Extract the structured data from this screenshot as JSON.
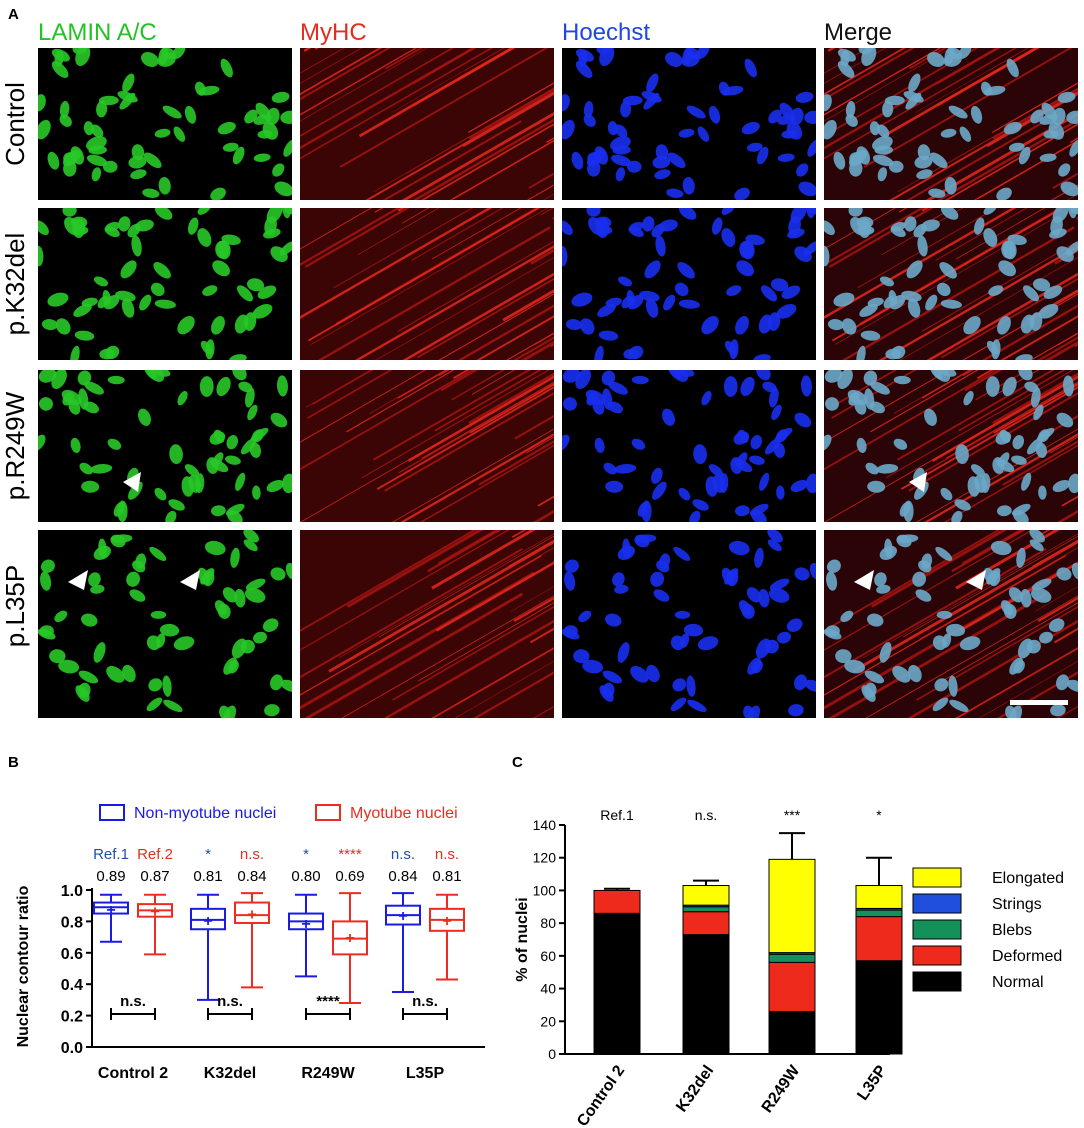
{
  "panel_a": {
    "letter": "A",
    "channels": [
      {
        "label": "LAMIN A/C",
        "color": "#22c322"
      },
      {
        "label": "MyHC",
        "color": "#e42d1f"
      },
      {
        "label": "Hoechst",
        "color": "#1f47e6"
      },
      {
        "label": "Merge",
        "color": "#111111"
      }
    ],
    "rows": [
      "Control",
      "p.K32del",
      "p.R249W",
      "p.L35P"
    ]
  },
  "panel_b": {
    "letter": "B",
    "legend": {
      "non_myotube": "Non-myotube nuclei",
      "myotube": "Myotube nuclei"
    },
    "colors": {
      "non_myotube": "#1a1ae6",
      "myotube": "#ee2b20",
      "sig_blue": "#1f4fa8",
      "sig_red": "#e03020"
    },
    "sig_labels": [
      "Ref.1",
      "Ref.2",
      "*",
      "n.s.",
      "*",
      "****",
      "n.s.",
      "n.s."
    ],
    "medians_text": [
      "0.89",
      "0.87",
      "0.81",
      "0.84",
      "0.80",
      "0.69",
      "0.84",
      "0.81"
    ],
    "bracket_labels": [
      "n.s.",
      "n.s.",
      "****",
      "n.s."
    ]
  },
  "panel_c": {
    "letter": "C",
    "header_labels": [
      "Ref.1",
      "n.s.",
      "***",
      "*"
    ],
    "legend": [
      "Elongated",
      "Strings",
      "Blebs",
      "Deformed",
      "Normal"
    ]
  },
  "chart_data": [
    {
      "type": "box",
      "title": "",
      "xlabel": "",
      "ylabel": "Nuclear contour ratio",
      "categories": [
        "Control 2",
        "K32del",
        "R249W",
        "L35P"
      ],
      "ylim": [
        0.0,
        1.0
      ],
      "yticks": [
        0.0,
        0.2,
        0.4,
        0.6,
        0.8,
        1.0
      ],
      "series": [
        {
          "name": "Non-myotube nuclei",
          "boxes": [
            {
              "min": 0.67,
              "q1": 0.85,
              "median": 0.89,
              "q3": 0.92,
              "max": 0.97,
              "mean": 0.88
            },
            {
              "min": 0.3,
              "q1": 0.75,
              "median": 0.81,
              "q3": 0.88,
              "max": 0.97,
              "mean": 0.81
            },
            {
              "min": 0.45,
              "q1": 0.75,
              "median": 0.8,
              "q3": 0.85,
              "max": 0.97,
              "mean": 0.79
            },
            {
              "min": 0.35,
              "q1": 0.78,
              "median": 0.84,
              "q3": 0.9,
              "max": 0.98,
              "mean": 0.84
            }
          ]
        },
        {
          "name": "Myotube nuclei",
          "boxes": [
            {
              "min": 0.59,
              "q1": 0.83,
              "median": 0.87,
              "q3": 0.91,
              "max": 0.97,
              "mean": 0.87
            },
            {
              "min": 0.38,
              "q1": 0.79,
              "median": 0.84,
              "q3": 0.92,
              "max": 0.98,
              "mean": 0.85
            },
            {
              "min": 0.28,
              "q1": 0.59,
              "median": 0.69,
              "q3": 0.8,
              "max": 0.98,
              "mean": 0.7
            },
            {
              "min": 0.43,
              "q1": 0.74,
              "median": 0.81,
              "q3": 0.88,
              "max": 0.97,
              "mean": 0.81
            }
          ]
        }
      ]
    },
    {
      "type": "bar",
      "stacked": true,
      "title": "",
      "xlabel": "",
      "ylabel": "% of nuclei",
      "categories": [
        "Control 2",
        "K32del",
        "R249W",
        "L35P"
      ],
      "ylim": [
        0,
        140
      ],
      "yticks": [
        0,
        20,
        40,
        60,
        80,
        100,
        120,
        140
      ],
      "series": [
        {
          "name": "Normal",
          "color": "#000000",
          "values": [
            86,
            73,
            26,
            57
          ],
          "errors": [
            0,
            7,
            12,
            13
          ]
        },
        {
          "name": "Deformed",
          "color": "#ee2a1c",
          "values": [
            14,
            14,
            30,
            27
          ],
          "errors": [
            0,
            0,
            0,
            0
          ]
        },
        {
          "name": "Blebs",
          "color": "#14905a",
          "values": [
            0,
            3,
            5,
            4
          ],
          "errors": [
            0,
            0,
            0,
            0
          ]
        },
        {
          "name": "Strings",
          "color": "#1f4fdc",
          "values": [
            0,
            1,
            1,
            1
          ],
          "errors": [
            1,
            2,
            9,
            1
          ]
        },
        {
          "name": "Elongated",
          "color": "#ffff00",
          "values": [
            0,
            12,
            57,
            14
          ],
          "errors": [
            0,
            3,
            16,
            17
          ]
        }
      ],
      "legend_position": "right"
    }
  ]
}
